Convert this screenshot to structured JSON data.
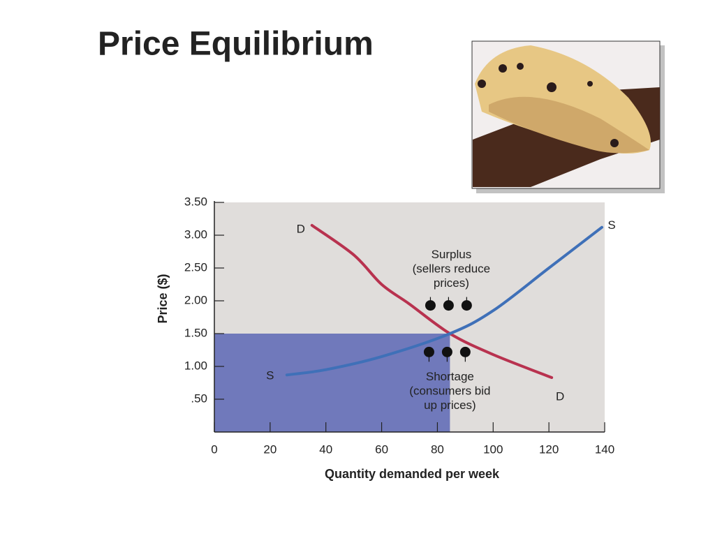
{
  "title": "Price Equilibrium",
  "chart_data": {
    "type": "line",
    "xlabel": "Quantity demanded per week",
    "ylabel": "Price ($)",
    "xlim": [
      0,
      140
    ],
    "xticks": [
      0,
      20,
      40,
      60,
      80,
      100,
      120,
      140
    ],
    "ylim": [
      0,
      3.5
    ],
    "yticks": [
      {
        "value": 0.5,
        "label": ".50"
      },
      {
        "value": 1,
        "label": "1.00"
      },
      {
        "value": 1.5,
        "label": "1.50"
      },
      {
        "value": 2,
        "label": "2.00"
      },
      {
        "value": 2.5,
        "label": "2.50"
      },
      {
        "value": 3,
        "label": "3.00"
      },
      {
        "value": 3.5,
        "label": "3.50"
      }
    ],
    "background": "#e0dddb",
    "series": [
      {
        "name": "D",
        "color": "#b8324f",
        "x": [
          35,
          50,
          60,
          70,
          84.5,
          100,
          121
        ],
        "values": [
          3.15,
          2.7,
          2.25,
          1.95,
          1.5,
          1.18,
          0.83
        ]
      },
      {
        "name": "S",
        "color": "#3f70b8",
        "x": [
          26,
          40,
          60,
          84.5,
          100,
          120,
          139
        ],
        "values": [
          0.87,
          0.95,
          1.15,
          1.5,
          1.85,
          2.5,
          3.12
        ]
      }
    ],
    "equilibrium": {
      "quantity": 84.5,
      "price": 1.5,
      "color": "#7079bb"
    },
    "annotations": [
      {
        "lines": [
          "Surplus",
          "(sellers reduce",
          "prices)"
        ],
        "points_x": [
          77.5,
          84,
          90.5
        ],
        "points_y": [
          1.93,
          1.93,
          1.93
        ]
      },
      {
        "lines": [
          "Shortage",
          "(consumers bid",
          "up prices)"
        ],
        "points_x": [
          77,
          83.5,
          90
        ],
        "points_y": [
          1.22,
          1.22,
          1.22
        ]
      }
    ]
  }
}
